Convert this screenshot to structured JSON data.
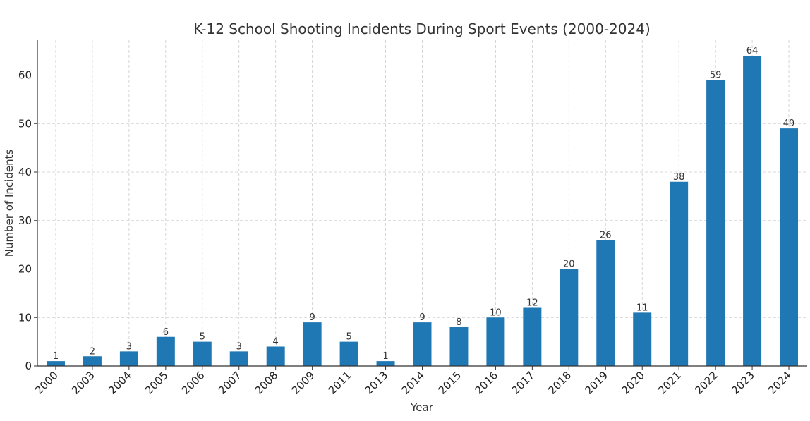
{
  "chart_data": {
    "type": "bar",
    "title": "K-12 School Shooting Incidents During Sport Events (2000-2024)",
    "xlabel": "Year",
    "ylabel": "Number of Incidents",
    "categories": [
      "2000",
      "2003",
      "2004",
      "2005",
      "2006",
      "2007",
      "2008",
      "2009",
      "2011",
      "2013",
      "2014",
      "2015",
      "2016",
      "2017",
      "2018",
      "2019",
      "2020",
      "2021",
      "2022",
      "2023",
      "2024"
    ],
    "values": [
      1,
      2,
      3,
      6,
      5,
      3,
      4,
      9,
      5,
      1,
      9,
      8,
      10,
      12,
      20,
      26,
      11,
      38,
      59,
      64,
      49
    ],
    "ylim": [
      0,
      67.2
    ],
    "yticks": [
      0,
      10,
      20,
      30,
      40,
      50,
      60
    ],
    "grid": true,
    "bar_color": "#1f77b4",
    "show_data_labels": true
  }
}
